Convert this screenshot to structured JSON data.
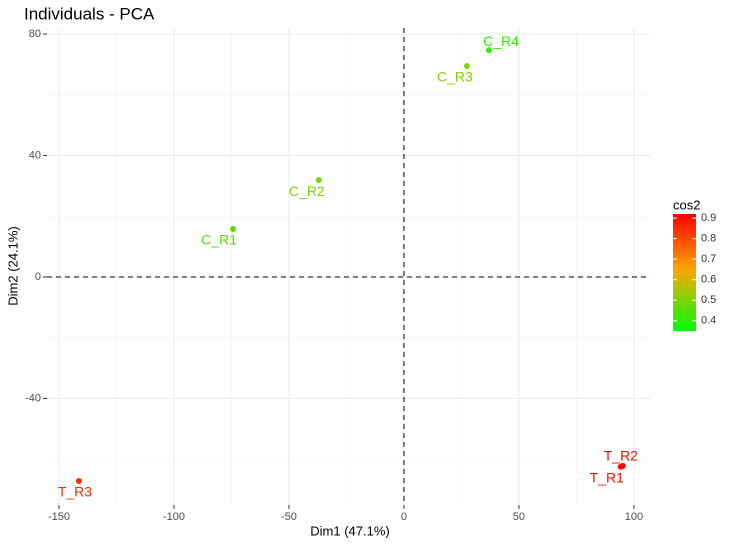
{
  "chart_data": {
    "type": "scatter",
    "title": "Individuals - PCA",
    "x_label": "Dim1 (47.1%)",
    "y_label": "Dim2 (24.1%)",
    "xlim": [
      -155.2,
      107
    ],
    "ylim": [
      -75.1,
      82
    ],
    "xticks": [
      -150,
      -100,
      -50,
      0,
      50,
      100
    ],
    "yticks": [
      -40,
      0,
      40,
      80
    ],
    "grid": true,
    "hline": 0,
    "vline": 0,
    "labels": [
      "C_R1",
      "C_R2",
      "C_R3",
      "C_R4",
      "T_R1",
      "T_R2",
      "T_R3"
    ],
    "x": [
      -74.3,
      -37.0,
      27.4,
      37.0,
      94.3,
      95.2,
      -141.3
    ],
    "values": [
      15.8,
      31.9,
      69.5,
      74.7,
      -62.5,
      -62.2,
      -67.2
    ],
    "color_legend": {
      "title": "cos2",
      "values": [
        0.45,
        0.5,
        0.5,
        0.4,
        0.9,
        0.9,
        0.85
      ],
      "lim": [
        0.35,
        0.92
      ],
      "ticks": [
        0.4,
        0.5,
        0.6,
        0.7,
        0.8,
        0.9
      ],
      "low": "#00ff00",
      "mid": "#ffa500",
      "high": "#ff0000",
      "midpoint": 0.65
    }
  }
}
